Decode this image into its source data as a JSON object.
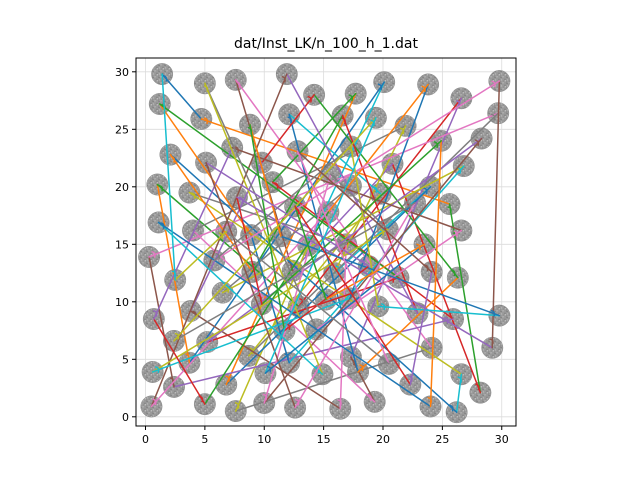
{
  "chart_data": {
    "type": "scatter",
    "title": "dat/Inst_LK/n_100_h_1.dat",
    "xlabel": "",
    "ylabel": "",
    "xlim": [
      -0.8,
      31.2
    ],
    "ylim": [
      -0.8,
      31.2
    ],
    "x_ticks": [
      0,
      5,
      10,
      15,
      20,
      25,
      30
    ],
    "y_ticks": [
      0,
      5,
      10,
      15,
      20,
      25,
      30
    ],
    "grid": true,
    "legend": "none",
    "circle_radius": 0.9,
    "circle_color": "#9a9a9a",
    "path_colors": [
      "#1f77b4",
      "#ff7f0e",
      "#2ca02c",
      "#d62728",
      "#9467bd",
      "#8c564b",
      "#e377c2",
      "#7f7f7f",
      "#bcbd22",
      "#17becf"
    ],
    "points": [
      [
        1.4,
        29.8
      ],
      [
        5,
        29
      ],
      [
        7.6,
        29.3
      ],
      [
        11.9,
        29.8
      ],
      [
        14.2,
        28
      ],
      [
        17.7,
        28.1
      ],
      [
        20.1,
        29.1
      ],
      [
        23.8,
        28.9
      ],
      [
        26.6,
        27.7
      ],
      [
        29.8,
        29.2
      ],
      [
        1.2,
        27.2
      ],
      [
        4.7,
        25.9
      ],
      [
        8.8,
        25.4
      ],
      [
        12.1,
        26.3
      ],
      [
        16.6,
        26.2
      ],
      [
        19.4,
        26
      ],
      [
        21.9,
        25.3
      ],
      [
        24.9,
        24
      ],
      [
        28.3,
        24.2
      ],
      [
        29.7,
        26.4
      ],
      [
        2.1,
        22.8
      ],
      [
        5.1,
        22.1
      ],
      [
        7.3,
        23.4
      ],
      [
        9.8,
        22.1
      ],
      [
        12.8,
        23.1
      ],
      [
        15.6,
        21.1
      ],
      [
        17.3,
        23.5
      ],
      [
        20.8,
        22
      ],
      [
        24,
        20
      ],
      [
        26.8,
        21.8
      ],
      [
        1,
        20.2
      ],
      [
        3.7,
        19.5
      ],
      [
        7.7,
        19.1
      ],
      [
        10.7,
        20.4
      ],
      [
        12.6,
        18.3
      ],
      [
        15.4,
        17.8
      ],
      [
        17.3,
        20.1
      ],
      [
        19.8,
        19.4
      ],
      [
        22.7,
        18.6
      ],
      [
        25.6,
        18.5
      ],
      [
        1.1,
        16.9
      ],
      [
        4,
        16.2
      ],
      [
        6.8,
        16.1
      ],
      [
        8.9,
        15.8
      ],
      [
        11.4,
        15.7
      ],
      [
        13.7,
        14.9
      ],
      [
        16.9,
        15
      ],
      [
        20.4,
        16.3
      ],
      [
        23.5,
        15
      ],
      [
        26.6,
        16.2
      ],
      [
        0.3,
        13.9
      ],
      [
        2.5,
        11.9
      ],
      [
        5.8,
        13.6
      ],
      [
        9,
        12.6
      ],
      [
        12.4,
        12.7
      ],
      [
        15.9,
        12.5
      ],
      [
        18.8,
        13.1
      ],
      [
        21.3,
        12.1
      ],
      [
        24.1,
        12.6
      ],
      [
        26.3,
        12.1
      ],
      [
        0.7,
        8.5
      ],
      [
        3.8,
        9.2
      ],
      [
        6.5,
        10.8
      ],
      [
        9.8,
        9.8
      ],
      [
        12.9,
        9.6
      ],
      [
        15.2,
        10.2
      ],
      [
        17.2,
        10.3
      ],
      [
        19.6,
        9.6
      ],
      [
        22.9,
        9
      ],
      [
        25.9,
        8.5
      ],
      [
        2.4,
        6.6
      ],
      [
        5.2,
        6.5
      ],
      [
        8.7,
        5.3
      ],
      [
        11.7,
        7.5
      ],
      [
        14.4,
        7.6
      ],
      [
        17.3,
        5.2
      ],
      [
        20.5,
        4.6
      ],
      [
        24.1,
        6
      ],
      [
        26.6,
        3.7
      ],
      [
        29.2,
        6
      ],
      [
        0.6,
        3.9
      ],
      [
        3.7,
        4.7
      ],
      [
        6.8,
        2.8
      ],
      [
        10.1,
        3.8
      ],
      [
        12.1,
        4.7
      ],
      [
        14.9,
        3.7
      ],
      [
        17.9,
        3.9
      ],
      [
        22.3,
        2.8
      ],
      [
        28.2,
        2.1
      ],
      [
        29.8,
        8.8
      ],
      [
        0.5,
        0.9
      ],
      [
        2.4,
        2.6
      ],
      [
        5,
        1.1
      ],
      [
        7.6,
        0.5
      ],
      [
        10,
        1.2
      ],
      [
        12.6,
        0.8
      ],
      [
        16.4,
        0.7
      ],
      [
        19.3,
        1.3
      ],
      [
        24,
        0.9
      ],
      [
        26.2,
        0.4
      ]
    ],
    "tour": [
      0,
      11,
      39,
      88,
      27,
      54,
      2,
      77,
      93,
      45,
      6,
      81,
      30,
      64,
      8,
      75,
      97,
      41,
      16,
      55,
      28,
      82,
      5,
      33,
      69,
      91,
      50,
      19,
      72,
      37,
      13,
      86,
      59,
      4,
      23,
      61,
      96,
      46,
      31,
      78,
      99,
      20,
      53,
      14,
      68,
      3,
      90,
      36,
      62,
      29,
      84,
      43,
      10,
      57,
      71,
      18,
      94,
      25,
      47,
      80,
      66,
      7,
      35,
      92,
      60,
      22,
      49,
      74,
      1,
      85,
      40,
      98,
      17,
      63,
      32,
      79,
      9,
      52,
      26,
      67,
      89,
      44,
      12,
      73,
      56,
      21,
      95,
      38,
      70,
      15,
      83,
      48,
      65,
      34,
      87,
      58,
      24,
      76,
      42,
      51
    ]
  }
}
